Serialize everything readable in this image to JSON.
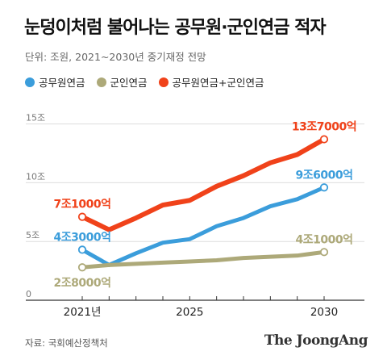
{
  "header": {
    "title": "눈덩이처럼 불어나는 공무원·군인연금 적자",
    "subtitle": "단위: 조원, 2021~2030년 중기재정 전망"
  },
  "legend": [
    {
      "label": "공무원연금",
      "color": "#3b9ddb"
    },
    {
      "label": "군인연금",
      "color": "#ada979"
    },
    {
      "label": "공무원연금+군인연금",
      "color": "#f0421a"
    }
  ],
  "footer": {
    "source": "자료: 국회예산정책처",
    "logo": "The JoongAng"
  },
  "chart_data": {
    "type": "line",
    "x": [
      2021,
      2022,
      2023,
      2024,
      2025,
      2026,
      2027,
      2028,
      2029,
      2030
    ],
    "x_tick_values": [
      2021,
      2025,
      2030
    ],
    "x_tick_labels": [
      "2021년",
      "2025",
      "2030"
    ],
    "y_tick_values": [
      0,
      5,
      10,
      15
    ],
    "y_tick_labels": [
      "0",
      "5조",
      "10조",
      "15조"
    ],
    "ylim": [
      0,
      15.8
    ],
    "grid": true,
    "series": [
      {
        "name": "공무원연금",
        "color": "#3b9ddb",
        "values": [
          4.3,
          3.0,
          4.0,
          4.9,
          5.2,
          6.3,
          7.0,
          8.0,
          8.6,
          9.6
        ]
      },
      {
        "name": "군인연금",
        "color": "#ada979",
        "values": [
          2.8,
          3.0,
          3.1,
          3.2,
          3.3,
          3.4,
          3.6,
          3.7,
          3.8,
          4.1
        ]
      },
      {
        "name": "공무원연금+군인연금",
        "color": "#f0421a",
        "values": [
          7.1,
          6.0,
          7.0,
          8.1,
          8.5,
          9.7,
          10.6,
          11.7,
          12.4,
          13.7
        ]
      }
    ],
    "annotations": [
      {
        "series": 2,
        "index": 0,
        "text": "7조1000억",
        "color": "#f0421a"
      },
      {
        "series": 0,
        "index": 0,
        "text": "4조3000억",
        "color": "#3b9ddb"
      },
      {
        "series": 1,
        "index": 0,
        "text": "2조8000억",
        "color": "#ada979"
      },
      {
        "series": 2,
        "index": 9,
        "text": "13조7000억",
        "color": "#f0421a"
      },
      {
        "series": 0,
        "index": 9,
        "text": "9조6000억",
        "color": "#3b9ddb"
      },
      {
        "series": 1,
        "index": 9,
        "text": "4조1000억",
        "color": "#ada979"
      }
    ]
  }
}
